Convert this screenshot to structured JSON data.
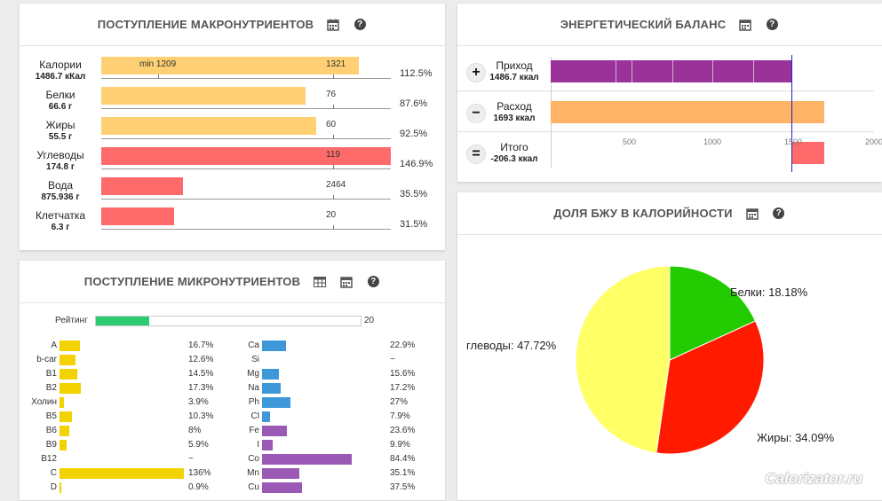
{
  "macro": {
    "title": "ПОСТУПЛЕНИЕ МАКРОНУТРИЕНТОВ",
    "rows": [
      {
        "name": "Калории",
        "amount": "1486.7 кКал",
        "min_label": "min 1209",
        "norm": "1321",
        "pct": "112.5%",
        "fill": 0.89,
        "color": "#ffcf73"
      },
      {
        "name": "Белки",
        "amount": "66.6 г",
        "norm": "76",
        "pct": "87.6%",
        "fill": 0.704,
        "color": "#ffcf73"
      },
      {
        "name": "Жиры",
        "amount": "55.5 г",
        "norm": "60",
        "pct": "92.5%",
        "fill": 0.743,
        "color": "#ffcf73"
      },
      {
        "name": "Углеводы",
        "amount": "174.8 г",
        "norm": "119",
        "pct": "146.9%",
        "fill": 1.0,
        "color": "#ff6b6b"
      },
      {
        "name": "Вода",
        "amount": "875.936 г",
        "norm": "2464",
        "pct": "35.5%",
        "fill": 0.283,
        "color": "#ff6b6b"
      },
      {
        "name": "Клетчатка",
        "amount": "6.3 г",
        "norm": "20",
        "pct": "31.5%",
        "fill": 0.252,
        "color": "#ff6b6b"
      }
    ]
  },
  "micro": {
    "title": "ПОСТУПЛЕНИЕ МИКРОНУТРИЕНТОВ",
    "rating_label": "Рейтинг",
    "rating_value": "20",
    "rating_fill": 0.2,
    "vitamins": [
      {
        "name": "A",
        "value": "16.7%",
        "fill": 0.167
      },
      {
        "name": "b-car",
        "value": "12.6%",
        "fill": 0.126
      },
      {
        "name": "B1",
        "value": "14.5%",
        "fill": 0.145
      },
      {
        "name": "B2",
        "value": "17.3%",
        "fill": 0.173
      },
      {
        "name": "Холин",
        "value": "3.9%",
        "fill": 0.039
      },
      {
        "name": "B5",
        "value": "10.3%",
        "fill": 0.103
      },
      {
        "name": "B6",
        "value": "8%",
        "fill": 0.08
      },
      {
        "name": "B9",
        "value": "5.9%",
        "fill": 0.059
      },
      {
        "name": "B12",
        "value": "~",
        "fill": 0
      },
      {
        "name": "C",
        "value": "136%",
        "fill": 1.0
      },
      {
        "name": "D",
        "value": "0.9%",
        "fill": 0.009
      }
    ],
    "minerals": [
      {
        "name": "Ca",
        "value": "22.9%",
        "fill": 0.229,
        "color": "#3d97d8"
      },
      {
        "name": "Si",
        "value": "~",
        "fill": 0,
        "color": "#3d97d8"
      },
      {
        "name": "Mg",
        "value": "15.6%",
        "fill": 0.156,
        "color": "#3d97d8"
      },
      {
        "name": "Na",
        "value": "17.2%",
        "fill": 0.172,
        "color": "#3d97d8"
      },
      {
        "name": "Ph",
        "value": "27%",
        "fill": 0.27,
        "color": "#3d97d8"
      },
      {
        "name": "Cl",
        "value": "7.9%",
        "fill": 0.079,
        "color": "#3d97d8"
      },
      {
        "name": "Fe",
        "value": "23.6%",
        "fill": 0.236,
        "color": "#9b59b6"
      },
      {
        "name": "I",
        "value": "9.9%",
        "fill": 0.099,
        "color": "#9b59b6"
      },
      {
        "name": "Co",
        "value": "84.4%",
        "fill": 0.844,
        "color": "#9b59b6"
      },
      {
        "name": "Mn",
        "value": "35.1%",
        "fill": 0.351,
        "color": "#9b59b6"
      },
      {
        "name": "Cu",
        "value": "37.5%",
        "fill": 0.375,
        "color": "#9b59b6"
      }
    ],
    "vitamin_color": "#f2d200"
  },
  "energy": {
    "title": "ЭНЕРГЕТИЧЕСКИЙ БАЛАНС",
    "rows": [
      {
        "sign": "+",
        "name": "Приход",
        "amount": "1486.7 ккал",
        "start": 0,
        "end": 1486.7,
        "color": "#993399"
      },
      {
        "sign": "−",
        "name": "Расход",
        "amount": "1693 ккал",
        "start": 0,
        "end": 1693,
        "color": "#ffb366"
      },
      {
        "sign": "=",
        "name": "Итого",
        "amount": "-206.3 ккал",
        "start": 1486.7,
        "end": 1693,
        "color": "#ff6b6b"
      }
    ],
    "axis_ticks": [
      "500",
      "1000",
      "1500",
      "2000"
    ],
    "axis_max": 2000,
    "marker_value": 1486.7
  },
  "bju": {
    "title": "ДОЛЯ БЖУ В КАЛОРИЙНОСТИ",
    "chart_data": {
      "type": "pie",
      "slices": [
        {
          "label": "Белки: 18.18%",
          "value": 18.18,
          "color": "#22cc00"
        },
        {
          "label": "Жиры: 34.09%",
          "value": 34.09,
          "color": "#ff1a00"
        },
        {
          "label": "глеводы: 47.72%",
          "value": 47.72,
          "color": "#ffff66"
        }
      ]
    }
  },
  "watermark": "Calorizator.ru"
}
